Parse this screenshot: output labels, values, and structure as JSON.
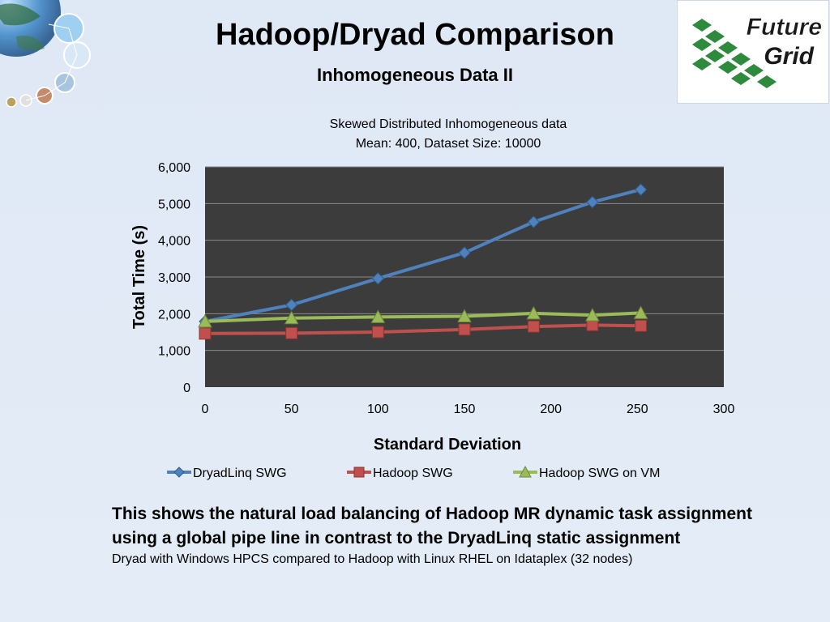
{
  "slide": {
    "title": "Hadoop/Dryad Comparison",
    "subtitle": "Inhomogeneous Data II",
    "logo_text": [
      "Future",
      "Grid"
    ],
    "caption_line1": "This shows the natural load balancing of Hadoop MR dynamic task assignment",
    "caption_line2": "using a global pipe line in contrast to the  DryadLinq static assignment",
    "caption_note": "Dryad with Windows HPCS compared to Hadoop with Linux RHEL on Idataplex (32 nodes)"
  },
  "chart_data": {
    "type": "line",
    "title": "Skewed Distributed Inhomogeneous data",
    "subtitle": "Mean: 400, Dataset Size: 10000",
    "xlabel": "Standard Deviation",
    "ylabel": "Total Time (s)",
    "xlim": [
      0,
      300
    ],
    "ylim": [
      0,
      6000
    ],
    "xticks": [
      0,
      50,
      100,
      150,
      200,
      250,
      300
    ],
    "yticks": [
      0,
      1000,
      2000,
      3000,
      4000,
      5000,
      6000
    ],
    "ytick_labels": [
      "0",
      "1,000",
      "2,000",
      "3,000",
      "4,000",
      "5,000",
      "6,000"
    ],
    "grid": true,
    "legend_position": "bottom",
    "plot_background": "#3c3c3c",
    "series": [
      {
        "name": "DryadLinq SWG",
        "color": "#4f81bd",
        "marker": "diamond",
        "x": [
          0,
          50,
          100,
          150,
          190,
          224,
          252
        ],
        "y": [
          1790,
          2240,
          2960,
          3660,
          4500,
          5040,
          5380
        ]
      },
      {
        "name": "Hadoop SWG",
        "color": "#c0504d",
        "marker": "square",
        "x": [
          0,
          50,
          100,
          150,
          190,
          224,
          252
        ],
        "y": [
          1460,
          1470,
          1500,
          1570,
          1650,
          1690,
          1670
        ]
      },
      {
        "name": "Hadoop SWG on VM",
        "color": "#9bbb59",
        "marker": "triangle",
        "x": [
          0,
          50,
          100,
          150,
          190,
          224,
          252
        ],
        "y": [
          1790,
          1880,
          1910,
          1930,
          2010,
          1960,
          2020
        ]
      }
    ]
  }
}
